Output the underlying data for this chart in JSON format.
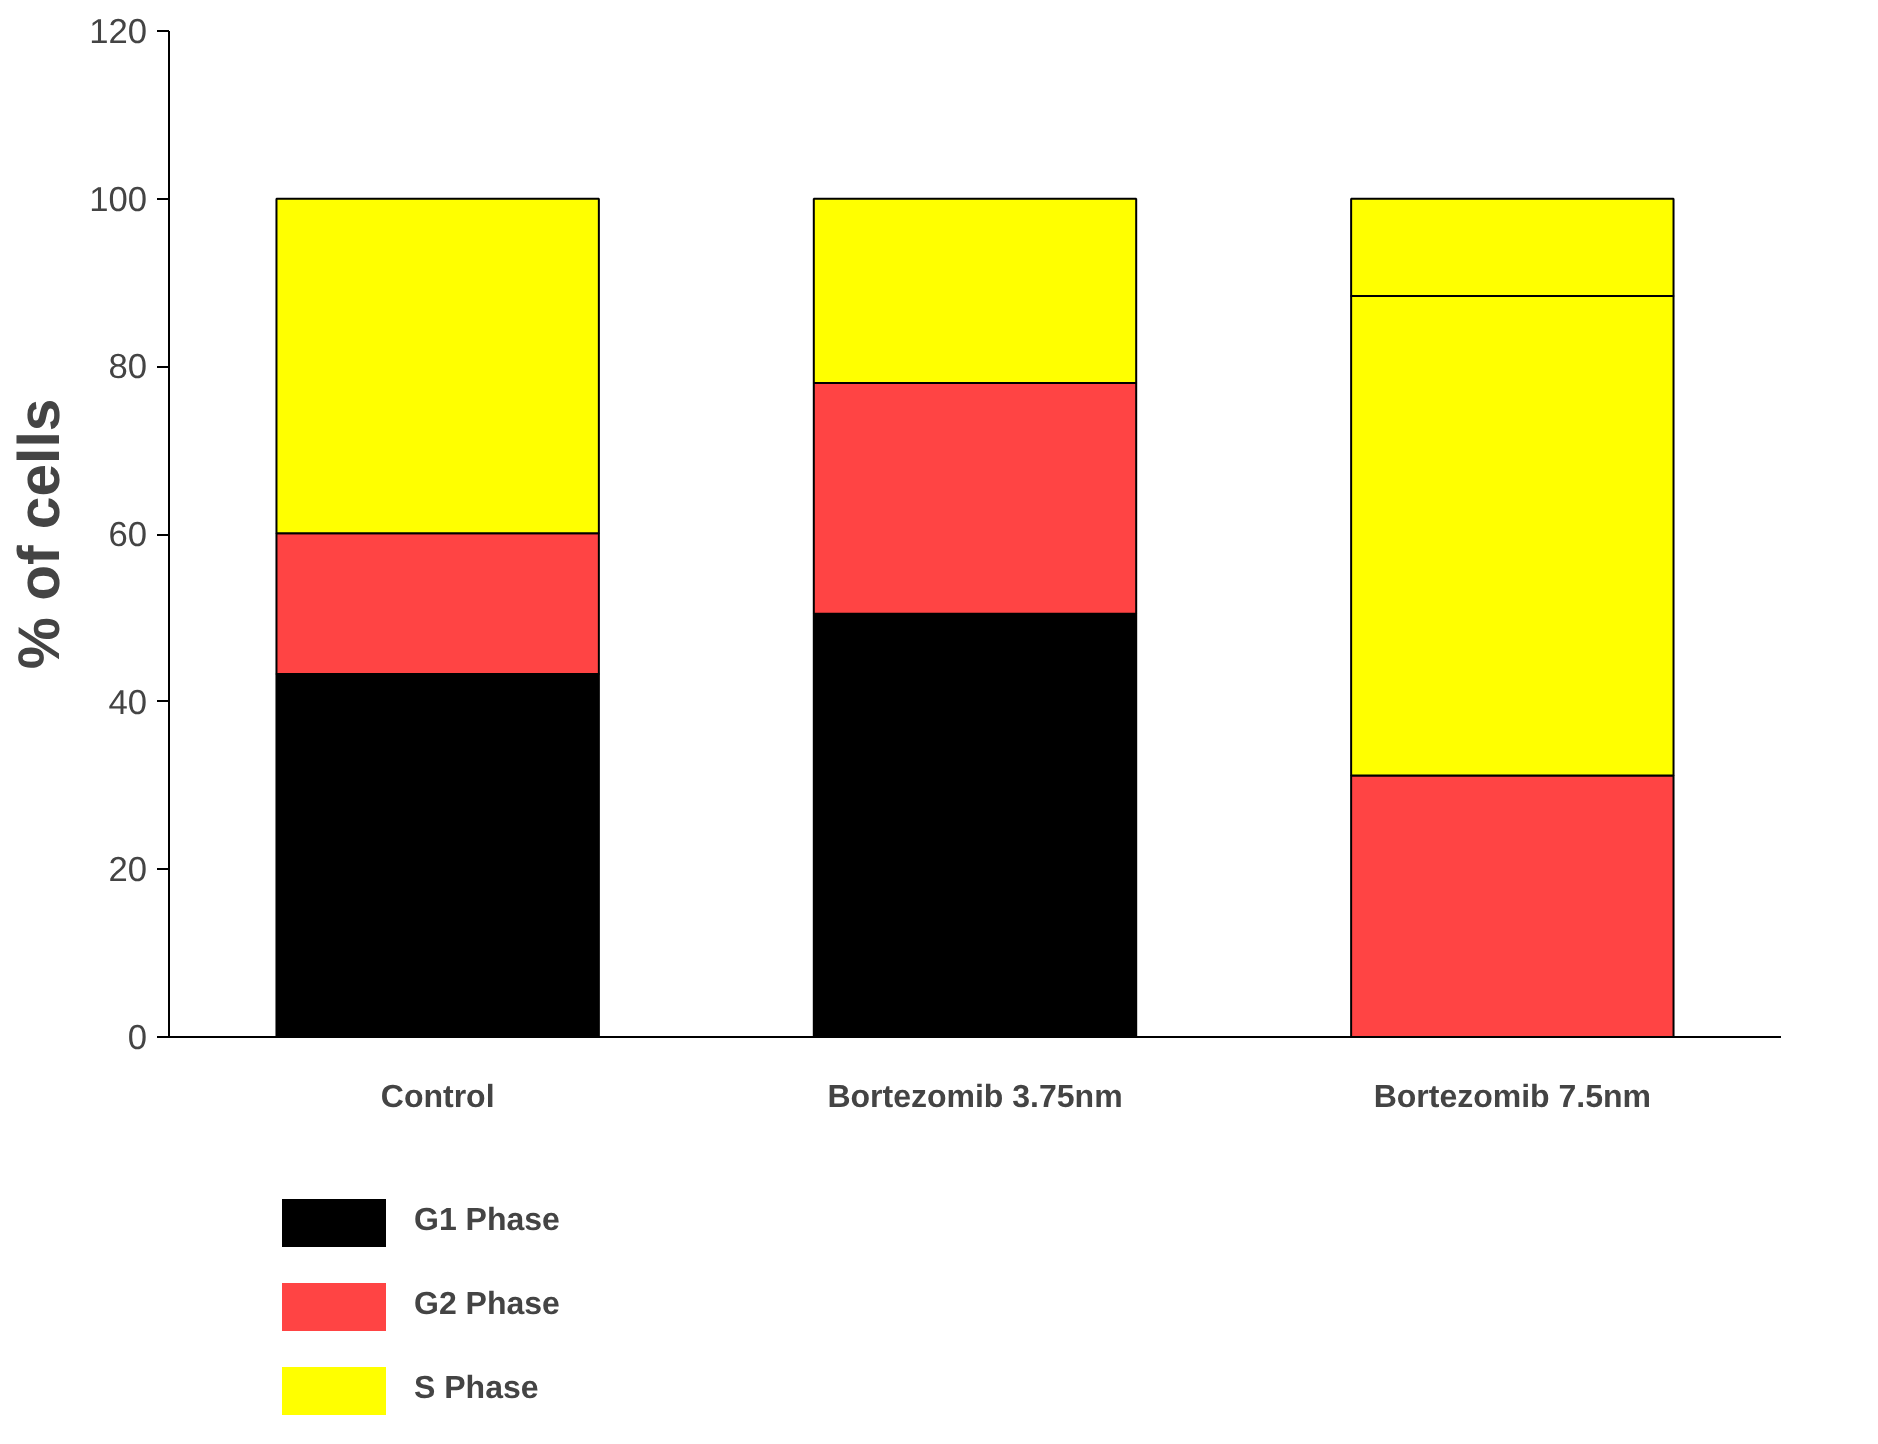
{
  "chart_data": {
    "type": "bar",
    "stacked": true,
    "ylabel": "% of cells",
    "categories": [
      "Control",
      "Bortezomib 3.75nm",
      "Bortezomib 7.5nm"
    ],
    "series": [
      {
        "name": "G1 Phase",
        "color": "#000000",
        "values": [
          43.3,
          50.5,
          0
        ]
      },
      {
        "name": "G2 Phase",
        "color": "#ff4444",
        "values": [
          16.8,
          27.5,
          31.2
        ]
      },
      {
        "name": "S Phase",
        "color": "#ffff00",
        "values": [
          39.9,
          22.0,
          57.2
        ]
      },
      {
        "color": "#ffff00",
        "values": [
          0,
          0,
          11.6
        ]
      }
    ],
    "ylim": [
      0,
      120
    ],
    "yticks": [
      0,
      20,
      40,
      60,
      80,
      100,
      120
    ],
    "grid": false,
    "legend": "bottom left"
  }
}
